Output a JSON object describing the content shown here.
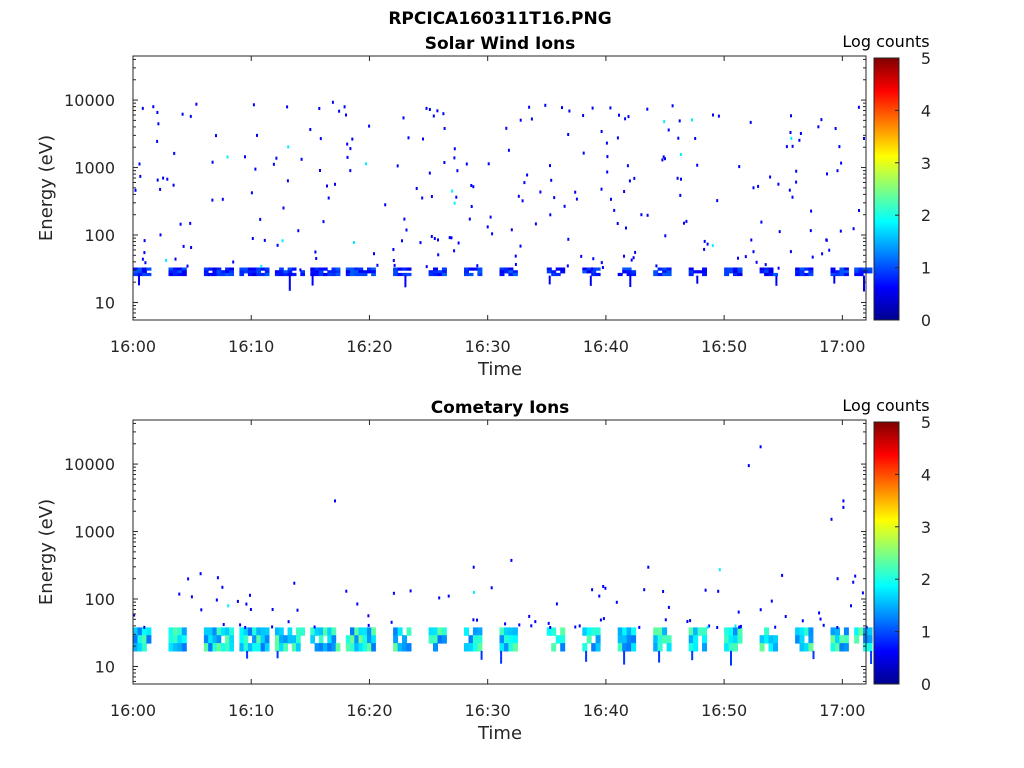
{
  "figure_title": "RPCICA160311T16.PNG",
  "chart_data": [
    {
      "type": "heatmap",
      "title": "Solar Wind Ions",
      "xlabel": "Time",
      "ylabel": "Energy (eV)",
      "y_scale": "log",
      "ylim": [
        5.5,
        45000
      ],
      "xlim": [
        "16:00",
        "17:02"
      ],
      "x_ticks": [
        "16:00",
        "16:10",
        "16:20",
        "16:30",
        "16:40",
        "16:50",
        "17:00"
      ],
      "y_ticks": [
        "10",
        "100",
        "1000",
        "10000"
      ],
      "colorbar": {
        "label": "Log counts",
        "min": 0,
        "max": 5,
        "ticks": [
          "0",
          "1",
          "2",
          "3",
          "4",
          "5"
        ],
        "colormap": "jet"
      },
      "bands": [
        {
          "start": "16:00",
          "end": "16:01",
          "e_low": 25,
          "e_high": 33,
          "log_counts": 0.8
        },
        {
          "start": "16:03",
          "end": "16:04",
          "e_low": 25,
          "e_high": 33,
          "log_counts": 0.8
        },
        {
          "start": "16:06",
          "end": "16:08",
          "e_low": 25,
          "e_high": 33,
          "log_counts": 0.8
        },
        {
          "start": "16:09",
          "end": "16:11",
          "e_low": 25,
          "e_high": 33,
          "log_counts": 0.8
        },
        {
          "start": "16:12",
          "end": "16:14",
          "e_low": 25,
          "e_high": 33,
          "log_counts": 0.8
        },
        {
          "start": "16:15",
          "end": "16:17",
          "e_low": 25,
          "e_high": 33,
          "log_counts": 0.8
        },
        {
          "start": "16:18",
          "end": "16:20",
          "e_low": 25,
          "e_high": 33,
          "log_counts": 0.8
        },
        {
          "start": "16:22",
          "end": "16:23",
          "e_low": 25,
          "e_high": 33,
          "log_counts": 0.8
        },
        {
          "start": "16:25",
          "end": "16:26",
          "e_low": 25,
          "e_high": 33,
          "log_counts": 0.8
        },
        {
          "start": "16:28",
          "end": "16:29",
          "e_low": 25,
          "e_high": 33,
          "log_counts": 0.8
        },
        {
          "start": "16:31",
          "end": "16:32",
          "e_low": 25,
          "e_high": 33,
          "log_counts": 0.8
        },
        {
          "start": "16:35",
          "end": "16:36",
          "e_low": 25,
          "e_high": 33,
          "log_counts": 0.8
        },
        {
          "start": "16:38",
          "end": "16:39",
          "e_low": 25,
          "e_high": 33,
          "log_counts": 0.8
        },
        {
          "start": "16:41",
          "end": "16:42",
          "e_low": 25,
          "e_high": 33,
          "log_counts": 0.8
        },
        {
          "start": "16:44",
          "end": "16:45",
          "e_low": 25,
          "e_high": 33,
          "log_counts": 0.8
        },
        {
          "start": "16:47",
          "end": "16:48",
          "e_low": 25,
          "e_high": 33,
          "log_counts": 0.8
        },
        {
          "start": "16:50",
          "end": "16:51",
          "e_low": 25,
          "e_high": 33,
          "log_counts": 0.8
        },
        {
          "start": "16:53",
          "end": "16:54",
          "e_low": 25,
          "e_high": 33,
          "log_counts": 0.8
        },
        {
          "start": "16:56",
          "end": "16:57",
          "e_low": 25,
          "e_high": 33,
          "log_counts": 0.8
        },
        {
          "start": "16:59",
          "end": "17:00",
          "e_low": 25,
          "e_high": 33,
          "log_counts": 0.8
        },
        {
          "start": "17:01",
          "end": "17:02",
          "e_low": 25,
          "e_high": 33,
          "log_counts": 0.8
        }
      ],
      "scatter_density": "sparse single-count pixels between 30 eV and 10000 eV"
    },
    {
      "type": "heatmap",
      "title": "Cometary Ions",
      "xlabel": "Time",
      "ylabel": "Energy (eV)",
      "y_scale": "log",
      "ylim": [
        5.5,
        45000
      ],
      "xlim": [
        "16:00",
        "17:02"
      ],
      "x_ticks": [
        "16:00",
        "16:10",
        "16:20",
        "16:30",
        "16:40",
        "16:50",
        "17:00"
      ],
      "y_ticks": [
        "10",
        "100",
        "1000",
        "10000"
      ],
      "colorbar": {
        "label": "Log counts",
        "min": 0,
        "max": 5,
        "ticks": [
          "0",
          "1",
          "2",
          "3",
          "4",
          "5"
        ],
        "colormap": "jet"
      },
      "bands": [
        {
          "start": "16:00",
          "end": "16:01",
          "e_low": 17,
          "e_high": 38,
          "log_counts": 1.8
        },
        {
          "start": "16:03",
          "end": "16:04",
          "e_low": 17,
          "e_high": 38,
          "log_counts": 1.8
        },
        {
          "start": "16:06",
          "end": "16:08",
          "e_low": 17,
          "e_high": 38,
          "log_counts": 1.8
        },
        {
          "start": "16:09",
          "end": "16:11",
          "e_low": 17,
          "e_high": 38,
          "log_counts": 1.8
        },
        {
          "start": "16:12",
          "end": "16:14",
          "e_low": 17,
          "e_high": 38,
          "log_counts": 1.8
        },
        {
          "start": "16:15",
          "end": "16:17",
          "e_low": 17,
          "e_high": 38,
          "log_counts": 1.8
        },
        {
          "start": "16:18",
          "end": "16:20",
          "e_low": 17,
          "e_high": 38,
          "log_counts": 1.8
        },
        {
          "start": "16:22",
          "end": "16:23",
          "e_low": 17,
          "e_high": 38,
          "log_counts": 1.8
        },
        {
          "start": "16:25",
          "end": "16:26",
          "e_low": 17,
          "e_high": 38,
          "log_counts": 1.8
        },
        {
          "start": "16:28",
          "end": "16:29",
          "e_low": 17,
          "e_high": 38,
          "log_counts": 1.8
        },
        {
          "start": "16:31",
          "end": "16:32",
          "e_low": 17,
          "e_high": 38,
          "log_counts": 1.8
        },
        {
          "start": "16:35",
          "end": "16:36",
          "e_low": 17,
          "e_high": 38,
          "log_counts": 1.8
        },
        {
          "start": "16:38",
          "end": "16:39",
          "e_low": 17,
          "e_high": 38,
          "log_counts": 1.8
        },
        {
          "start": "16:41",
          "end": "16:42",
          "e_low": 17,
          "e_high": 38,
          "log_counts": 1.8
        },
        {
          "start": "16:44",
          "end": "16:45",
          "e_low": 17,
          "e_high": 38,
          "log_counts": 1.8
        },
        {
          "start": "16:47",
          "end": "16:48",
          "e_low": 17,
          "e_high": 38,
          "log_counts": 1.8
        },
        {
          "start": "16:50",
          "end": "16:51",
          "e_low": 17,
          "e_high": 38,
          "log_counts": 1.8
        },
        {
          "start": "16:53",
          "end": "16:54",
          "e_low": 17,
          "e_high": 38,
          "log_counts": 1.8
        },
        {
          "start": "16:56",
          "end": "16:57",
          "e_low": 17,
          "e_high": 38,
          "log_counts": 1.8
        },
        {
          "start": "16:59",
          "end": "17:00",
          "e_low": 17,
          "e_high": 38,
          "log_counts": 1.8
        },
        {
          "start": "17:01",
          "end": "17:02",
          "e_low": 17,
          "e_high": 38,
          "log_counts": 1.8
        }
      ],
      "scatter_density": "sparse counts above bands up to ~300 eV, isolated points near 3000 and 10000-20000 eV"
    }
  ]
}
